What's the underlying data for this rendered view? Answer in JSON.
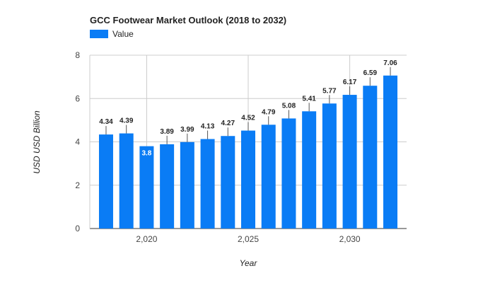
{
  "chart_data": {
    "type": "bar",
    "title": "GCC Footwear Market Outlook (2018 to 2032)",
    "xlabel": "Year",
    "ylabel": "USD USD Billion",
    "legend": {
      "position": "top-left",
      "entries": [
        "Value"
      ]
    },
    "ylim": [
      0,
      8
    ],
    "y_ticks": [
      0,
      2,
      4,
      6,
      8
    ],
    "x_ticks": [
      2020,
      2025,
      2030
    ],
    "x_tick_labels": [
      "2,020",
      "2,025",
      "2,030"
    ],
    "grid": true,
    "bar_color": "#0a7cf5",
    "series": [
      {
        "name": "Value",
        "x": [
          2018,
          2019,
          2020,
          2021,
          2022,
          2023,
          2024,
          2025,
          2026,
          2027,
          2028,
          2029,
          2030,
          2031,
          2032
        ],
        "values": [
          4.34,
          4.39,
          3.8,
          3.89,
          3.99,
          4.13,
          4.27,
          4.52,
          4.79,
          5.08,
          5.41,
          5.77,
          6.17,
          6.59,
          7.06
        ],
        "labels": [
          "4.34",
          "4.39",
          "3.8",
          "3.89",
          "3.99",
          "4.13",
          "4.27",
          "4.52",
          "4.79",
          "5.08",
          "5.41",
          "5.77",
          "6.17",
          "6.59",
          "7.06"
        ]
      }
    ]
  }
}
